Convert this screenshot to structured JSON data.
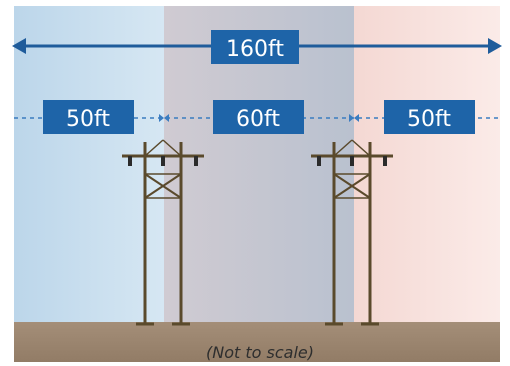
{
  "dimensions": {
    "total_label": "160ft",
    "left_label": "50ft",
    "center_label": "60ft",
    "right_label": "50ft"
  },
  "note": "(Not to scale)",
  "colors": {
    "arrow_blue": "#1f5c9b",
    "label_box": "#1e64a8",
    "zone_left": "#c9dfee",
    "zone_center": "#c5c5cf",
    "zone_right": "#f6dfdc",
    "ground": "#a08a74",
    "pole": "#5a4a2c"
  },
  "icons": {
    "transmission_towers": "transmission-tower-icon"
  }
}
